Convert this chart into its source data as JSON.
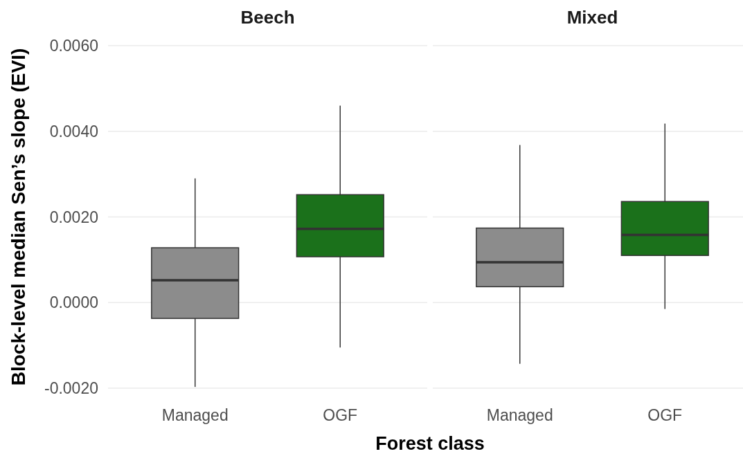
{
  "chart_data": [
    {
      "type": "box",
      "title": "Beech",
      "xlabel": "Forest class",
      "ylabel": "Block-level median Sen’s slope (EVI)",
      "categories": [
        "Managed",
        "OGF"
      ],
      "colors": [
        "#8c8c8c",
        "#1b711b"
      ],
      "boxes": [
        {
          "low": -0.00197,
          "q1": -0.00037,
          "median": 0.00052,
          "q3": 0.00128,
          "high": 0.0029
        },
        {
          "low": -0.00105,
          "q1": 0.00107,
          "median": 0.00172,
          "q3": 0.00252,
          "high": 0.0046
        }
      ],
      "ylim": [
        -0.002,
        0.006
      ],
      "yticks": [
        {
          "value": -0.002,
          "label": "-0.0020"
        },
        {
          "value": 0,
          "label": "0.0000"
        },
        {
          "value": 0.002,
          "label": "0.0020"
        },
        {
          "value": 0.004,
          "label": "0.0040"
        },
        {
          "value": 0.006,
          "label": "0.0060"
        }
      ],
      "grid": "y"
    },
    {
      "type": "box",
      "title": "Mixed",
      "categories": [
        "Managed",
        "OGF"
      ],
      "colors": [
        "#8c8c8c",
        "#1b711b"
      ],
      "boxes": [
        {
          "low": -0.00143,
          "q1": 0.00037,
          "median": 0.00094,
          "q3": 0.00174,
          "high": 0.00368
        },
        {
          "low": -0.00015,
          "q1": 0.0011,
          "median": 0.00158,
          "q3": 0.00236,
          "high": 0.00418
        }
      ],
      "ylim": [
        -0.002,
        0.006
      ],
      "yticks": [
        -0.002,
        0,
        0.002,
        0.004,
        0.006
      ],
      "grid": "y",
      "tick_labels": "x"
    }
  ]
}
